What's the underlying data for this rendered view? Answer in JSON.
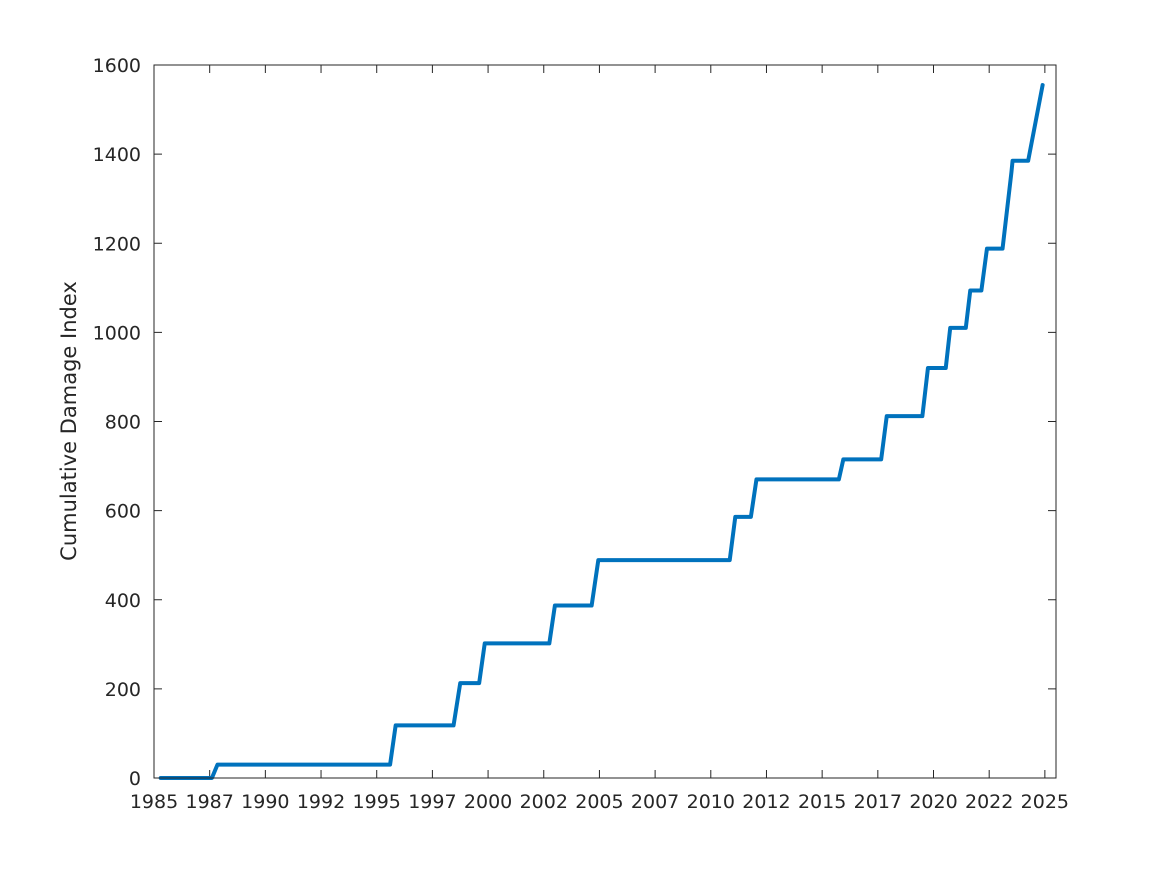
{
  "chart_data": {
    "type": "line",
    "title": "",
    "xlabel": "",
    "ylabel": "Cumulative Damage Index",
    "xlim": [
      1985.0,
      2025.5
    ],
    "ylim": [
      0,
      1600
    ],
    "x_ticks": [
      1985.0,
      1987.5,
      1990.0,
      1992.5,
      1995.0,
      1997.5,
      2000.0,
      2002.5,
      2005.0,
      2007.5,
      2010.0,
      2012.5,
      2015.0,
      2017.5,
      2020.0,
      2022.5,
      2025.0
    ],
    "x_tick_labels": [
      "1985",
      "1987",
      "1990",
      "1992",
      "1995",
      "1997",
      "2000",
      "2002",
      "2005",
      "2007",
      "2010",
      "2012",
      "2015",
      "2017",
      "2020",
      "2022",
      "2025"
    ],
    "y_ticks": [
      0,
      200,
      400,
      600,
      800,
      1000,
      1200,
      1400,
      1600
    ],
    "y_tick_labels": [
      "0",
      "200",
      "400",
      "600",
      "800",
      "1000",
      "1200",
      "1400",
      "1600"
    ],
    "grid": false,
    "line_color": "#0072BD",
    "series": [
      {
        "x": [
          1985.3,
          1987.6,
          1987.85,
          1995.6,
          1995.85,
          1998.45,
          1998.75,
          1999.6,
          1999.85,
          2002.75,
          2003.0,
          2004.65,
          2004.95,
          2010.85,
          2011.1,
          2011.8,
          2012.05,
          2015.75,
          2015.95,
          2017.65,
          2017.9,
          2019.5,
          2019.75,
          2020.55,
          2020.75,
          2021.45,
          2021.65,
          2022.15,
          2022.4,
          2023.1,
          2023.5,
          2023.55,
          2024.25,
          2024.9
        ],
        "y": [
          0,
          0,
          30,
          30,
          118,
          118,
          213,
          213,
          302,
          302,
          387,
          387,
          489,
          489,
          586,
          586,
          670,
          670,
          715,
          715,
          812,
          812,
          920,
          920,
          1010,
          1010,
          1094,
          1094,
          1188,
          1188,
          1360,
          1385,
          1385,
          1555
        ]
      }
    ]
  }
}
